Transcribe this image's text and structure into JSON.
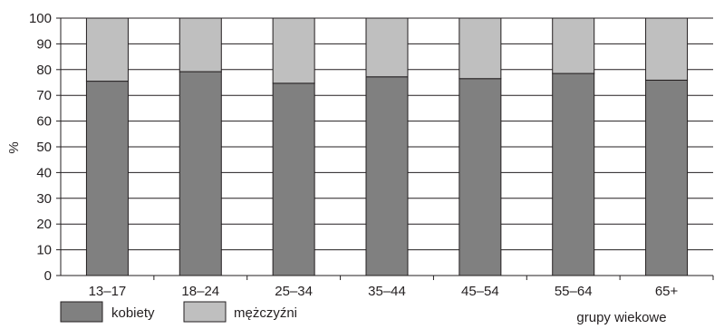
{
  "chart_data": {
    "type": "bar",
    "stacked": true,
    "categories": [
      "13–17",
      "18–24",
      "25–34",
      "35–44",
      "45–54",
      "55–64",
      "65+"
    ],
    "series": [
      {
        "name": "kobiety",
        "values": [
          75.5,
          79.2,
          74.7,
          77.2,
          76.5,
          78.5,
          75.9
        ],
        "color": "#808080"
      },
      {
        "name": "mężczyźni",
        "values": [
          24.5,
          20.8,
          25.3,
          22.8,
          23.5,
          21.5,
          24.1
        ],
        "color": "#bfbfbf"
      }
    ],
    "ylabel": "%",
    "xlabel": "grupy wiekowe",
    "ylim": [
      0,
      100
    ],
    "yticks": [
      0,
      10,
      20,
      30,
      40,
      50,
      60,
      70,
      80,
      90,
      100
    ],
    "grid": true,
    "legend_position": "bottom-left"
  }
}
